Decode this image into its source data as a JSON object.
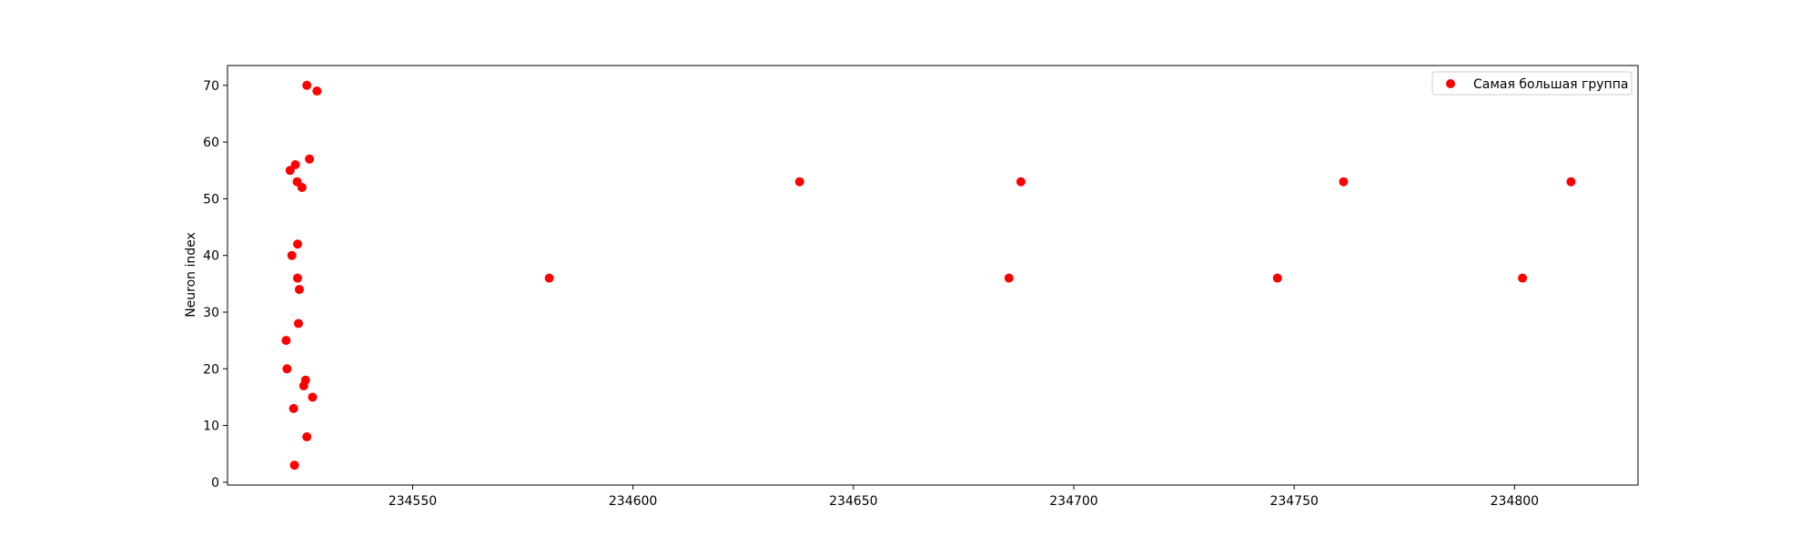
{
  "chart_data": {
    "type": "scatter",
    "title": "",
    "xlabel": "",
    "ylabel": "Neuron index",
    "xlim": [
      234508,
      234828
    ],
    "ylim": [
      -0.5,
      73.5
    ],
    "xticks": [
      234550,
      234600,
      234650,
      234700,
      234750,
      234800
    ],
    "yticks": [
      0,
      10,
      20,
      30,
      40,
      50,
      60,
      70
    ],
    "grid": false,
    "legend_position": "top-right",
    "series": [
      {
        "name": "Самая большая группа",
        "color": "#ff0000",
        "points": [
          {
            "x": 234526.0,
            "y": 70
          },
          {
            "x": 234528.3,
            "y": 69
          },
          {
            "x": 234526.6,
            "y": 57
          },
          {
            "x": 234523.4,
            "y": 56
          },
          {
            "x": 234522.2,
            "y": 55
          },
          {
            "x": 234523.8,
            "y": 53
          },
          {
            "x": 234524.9,
            "y": 52
          },
          {
            "x": 234523.9,
            "y": 42
          },
          {
            "x": 234522.6,
            "y": 40
          },
          {
            "x": 234523.9,
            "y": 36
          },
          {
            "x": 234524.3,
            "y": 34
          },
          {
            "x": 234524.1,
            "y": 28
          },
          {
            "x": 234521.3,
            "y": 25
          },
          {
            "x": 234521.5,
            "y": 20
          },
          {
            "x": 234525.7,
            "y": 18
          },
          {
            "x": 234525.3,
            "y": 17
          },
          {
            "x": 234527.3,
            "y": 15
          },
          {
            "x": 234523.0,
            "y": 13
          },
          {
            "x": 234526.0,
            "y": 8
          },
          {
            "x": 234523.2,
            "y": 3
          },
          {
            "x": 234581.0,
            "y": 36
          },
          {
            "x": 234637.8,
            "y": 53
          },
          {
            "x": 234685.3,
            "y": 36
          },
          {
            "x": 234688.0,
            "y": 53
          },
          {
            "x": 234746.2,
            "y": 36
          },
          {
            "x": 234761.2,
            "y": 53
          },
          {
            "x": 234801.8,
            "y": 36
          },
          {
            "x": 234812.8,
            "y": 53
          }
        ]
      }
    ]
  }
}
